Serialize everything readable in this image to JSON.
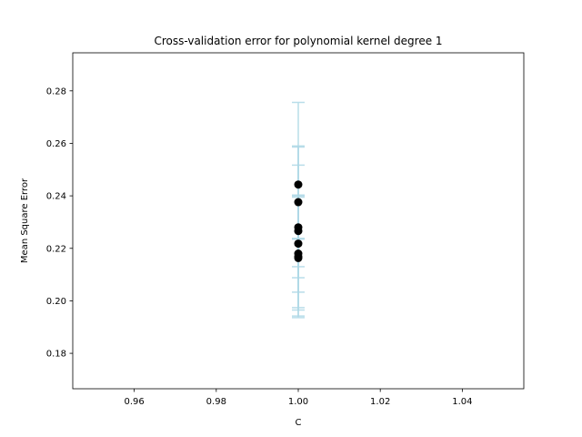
{
  "chart_data": {
    "type": "scatter",
    "title": "Cross-validation error for polynomial kernel degree 1",
    "xlabel": "C",
    "ylabel": "Mean Square Error",
    "xlim": [
      0.945,
      1.055
    ],
    "ylim": [
      0.1665,
      0.2945
    ],
    "x_ticks": [
      0.96,
      0.98,
      1.0,
      1.02,
      1.04
    ],
    "x_tick_labels": [
      "0.96",
      "0.98",
      "1.00",
      "1.02",
      "1.04"
    ],
    "y_ticks": [
      0.18,
      0.2,
      0.22,
      0.24,
      0.26,
      0.28
    ],
    "y_tick_labels": [
      "0.18",
      "0.20",
      "0.22",
      "0.24",
      "0.26",
      "0.28"
    ],
    "grid": false,
    "marker_color": "#000000",
    "errorbar_color": "#add8e6",
    "points": [
      {
        "x": 1.0,
        "y": 0.2443,
        "yerr": 0.0313
      },
      {
        "x": 1.0,
        "y": 0.2376,
        "yerr": 0.0141
      },
      {
        "x": 1.0,
        "y": 0.228,
        "yerr": 0.0306
      },
      {
        "x": 1.0,
        "y": 0.2266,
        "yerr": 0.0324
      },
      {
        "x": 1.0,
        "y": 0.2218,
        "yerr": 0.0185
      },
      {
        "x": 1.0,
        "y": 0.218,
        "yerr": 0.0215
      },
      {
        "x": 1.0,
        "y": 0.2168,
        "yerr": 0.0232
      },
      {
        "x": 1.0,
        "y": 0.2163,
        "yerr": 0.0075
      }
    ]
  }
}
